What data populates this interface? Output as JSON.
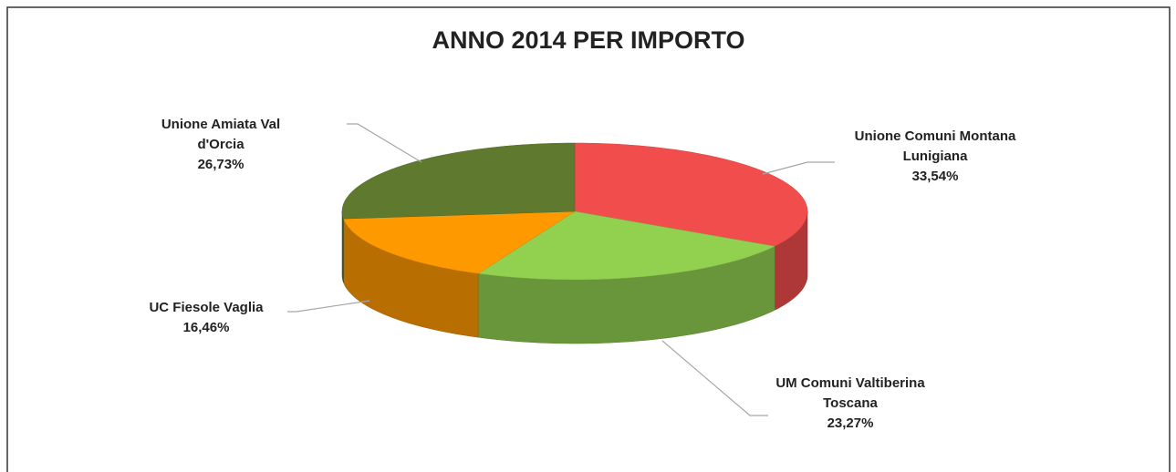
{
  "chart_data": {
    "type": "pie",
    "title": "ANNO 2014 PER IMPORTO",
    "categories": [
      "Unione Comuni Montana Lunigiana",
      "UM Comuni Valtiberina Toscana",
      "UC Fiesole Vaglia",
      "Unione Amiata Val d'Orcia"
    ],
    "values": [
      33.54,
      23.27,
      16.46,
      26.73
    ],
    "value_labels": [
      "33,54%",
      "23,27%",
      "16,46%",
      "26,73%"
    ],
    "colors": [
      "#f24d4d",
      "#92d050",
      "#ff9900",
      "#5f7a2e"
    ]
  }
}
